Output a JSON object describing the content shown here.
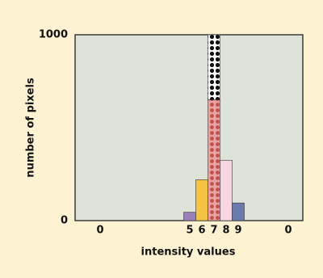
{
  "chart_data": {
    "type": "bar",
    "y_label": "number of pixels",
    "x_label": "intensity values",
    "categories": [
      "0",
      "5",
      "6",
      "7",
      "8",
      "9",
      "0"
    ],
    "series": [
      {
        "colors": [
          null,
          "#9b7fb8",
          "#f6c445",
          "#eaa3a3",
          "#f7d8e2",
          "#6a7bab"
        ],
        "values": [
          null,
          45,
          220,
          650,
          325,
          95,
          null
        ]
      },
      {
        "colors": [
          null,
          null,
          null,
          "#ffffff"
        ],
        "values": [
          null,
          null,
          null,
          350,
          null,
          null,
          null
        ]
      }
    ],
    "ylim": [
      0,
      1000
    ],
    "yticks": [
      0,
      1000
    ]
  }
}
